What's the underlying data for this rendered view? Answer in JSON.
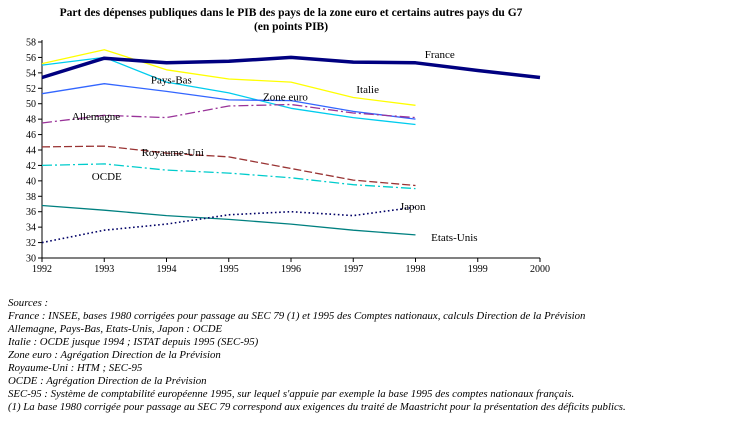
{
  "title": {
    "line1": "Part des dépenses publiques dans le PIB des pays de la zone euro et certains autres pays du G7",
    "line2": "(en points PIB)"
  },
  "chart_data": {
    "type": "line",
    "x": [
      1992,
      1993,
      1994,
      1995,
      1996,
      1997,
      1998,
      1999,
      2000
    ],
    "xlim": [
      1992,
      2000
    ],
    "ylim": [
      30,
      58
    ],
    "ytick_step": 2,
    "grid": false,
    "legend": "inline-labels",
    "series": [
      {
        "name": "France",
        "color": "#000080",
        "width": 3.5,
        "style": "solid",
        "values": [
          53.4,
          55.9,
          55.3,
          55.5,
          56.0,
          55.4,
          55.3,
          54.3,
          53.4
        ]
      },
      {
        "name": "Pays-Bas",
        "color": "#00CCEE",
        "width": 1.3,
        "style": "solid",
        "values": [
          55.0,
          56.0,
          52.8,
          51.4,
          49.4,
          48.2,
          47.3
        ]
      },
      {
        "name": "Italie",
        "color": "#FFFF00",
        "width": 1.3,
        "style": "solid",
        "values": [
          55.2,
          57.0,
          54.4,
          53.2,
          52.8,
          50.8,
          49.8
        ]
      },
      {
        "name": "Zone euro",
        "color": "#3366FF",
        "width": 1.3,
        "style": "solid",
        "values": [
          51.3,
          52.6,
          51.6,
          50.5,
          50.4,
          49.0,
          48.0
        ]
      },
      {
        "name": "Allemagne",
        "color": "#993399",
        "width": 1.3,
        "style": "dashdot",
        "values": [
          47.5,
          48.5,
          48.2,
          49.7,
          49.9,
          48.8,
          48.2
        ]
      },
      {
        "name": "Royaume-Uni",
        "color": "#993333",
        "width": 1.3,
        "style": "dash",
        "values": [
          44.4,
          44.5,
          43.6,
          43.1,
          41.6,
          40.1,
          39.4
        ]
      },
      {
        "name": "OCDE",
        "color": "#00CCCC",
        "width": 1.3,
        "style": "dashdot",
        "values": [
          42.0,
          42.2,
          41.4,
          41.0,
          40.4,
          39.5,
          39.0
        ]
      },
      {
        "name": "Japon",
        "color": "#000066",
        "width": 1.6,
        "style": "dot",
        "values": [
          32.0,
          33.6,
          34.4,
          35.6,
          36.0,
          35.5,
          36.6
        ]
      },
      {
        "name": "Etats-Unis",
        "color": "#008080",
        "width": 1.3,
        "style": "solid",
        "values": [
          36.8,
          36.2,
          35.5,
          35.0,
          34.4,
          33.6,
          33.0
        ]
      }
    ],
    "labels": [
      {
        "text": "France",
        "x": 1998.15,
        "y": 55.9
      },
      {
        "text": "Pays-Bas",
        "x": 1993.75,
        "y": 52.6
      },
      {
        "text": "Zone euro",
        "x": 1995.55,
        "y": 50.4
      },
      {
        "text": "Italie",
        "x": 1997.05,
        "y": 51.4
      },
      {
        "text": "Allemagne",
        "x": 1992.48,
        "y": 47.9
      },
      {
        "text": "Royaume-Uni",
        "x": 1993.6,
        "y": 43.2
      },
      {
        "text": "OCDE",
        "x": 1992.8,
        "y": 40.1
      },
      {
        "text": "Japon",
        "x": 1997.75,
        "y": 36.2
      },
      {
        "text": "Etats-Unis",
        "x": 1998.25,
        "y": 32.2
      }
    ]
  },
  "sources": {
    "lines": [
      "Sources :",
      "France : INSEE, bases 1980 corrigées pour passage au SEC 79 (1) et 1995 des Comptes nationaux, calculs Direction de la Prévision",
      "Allemagne, Pays-Bas, Etats-Unis, Japon  : OCDE",
      "Italie : OCDE jusque 1994 ; ISTAT depuis 1995 (SEC-95)",
      "Zone euro : Agrégation Direction de la Prévision",
      "Royaume-Uni : HTM ; SEC-95",
      "OCDE : Agrégation Direction de la Prévision",
      "SEC-95 : Système de comptabilité européenne 1995, sur lequel s'appuie par exemple la base 1995 des comptes nationaux français.",
      "(1) La base 1980 corrigée pour passage au SEC 79 correspond aux exigences du traité de Maastricht pour la présentation des déficits publics."
    ]
  }
}
